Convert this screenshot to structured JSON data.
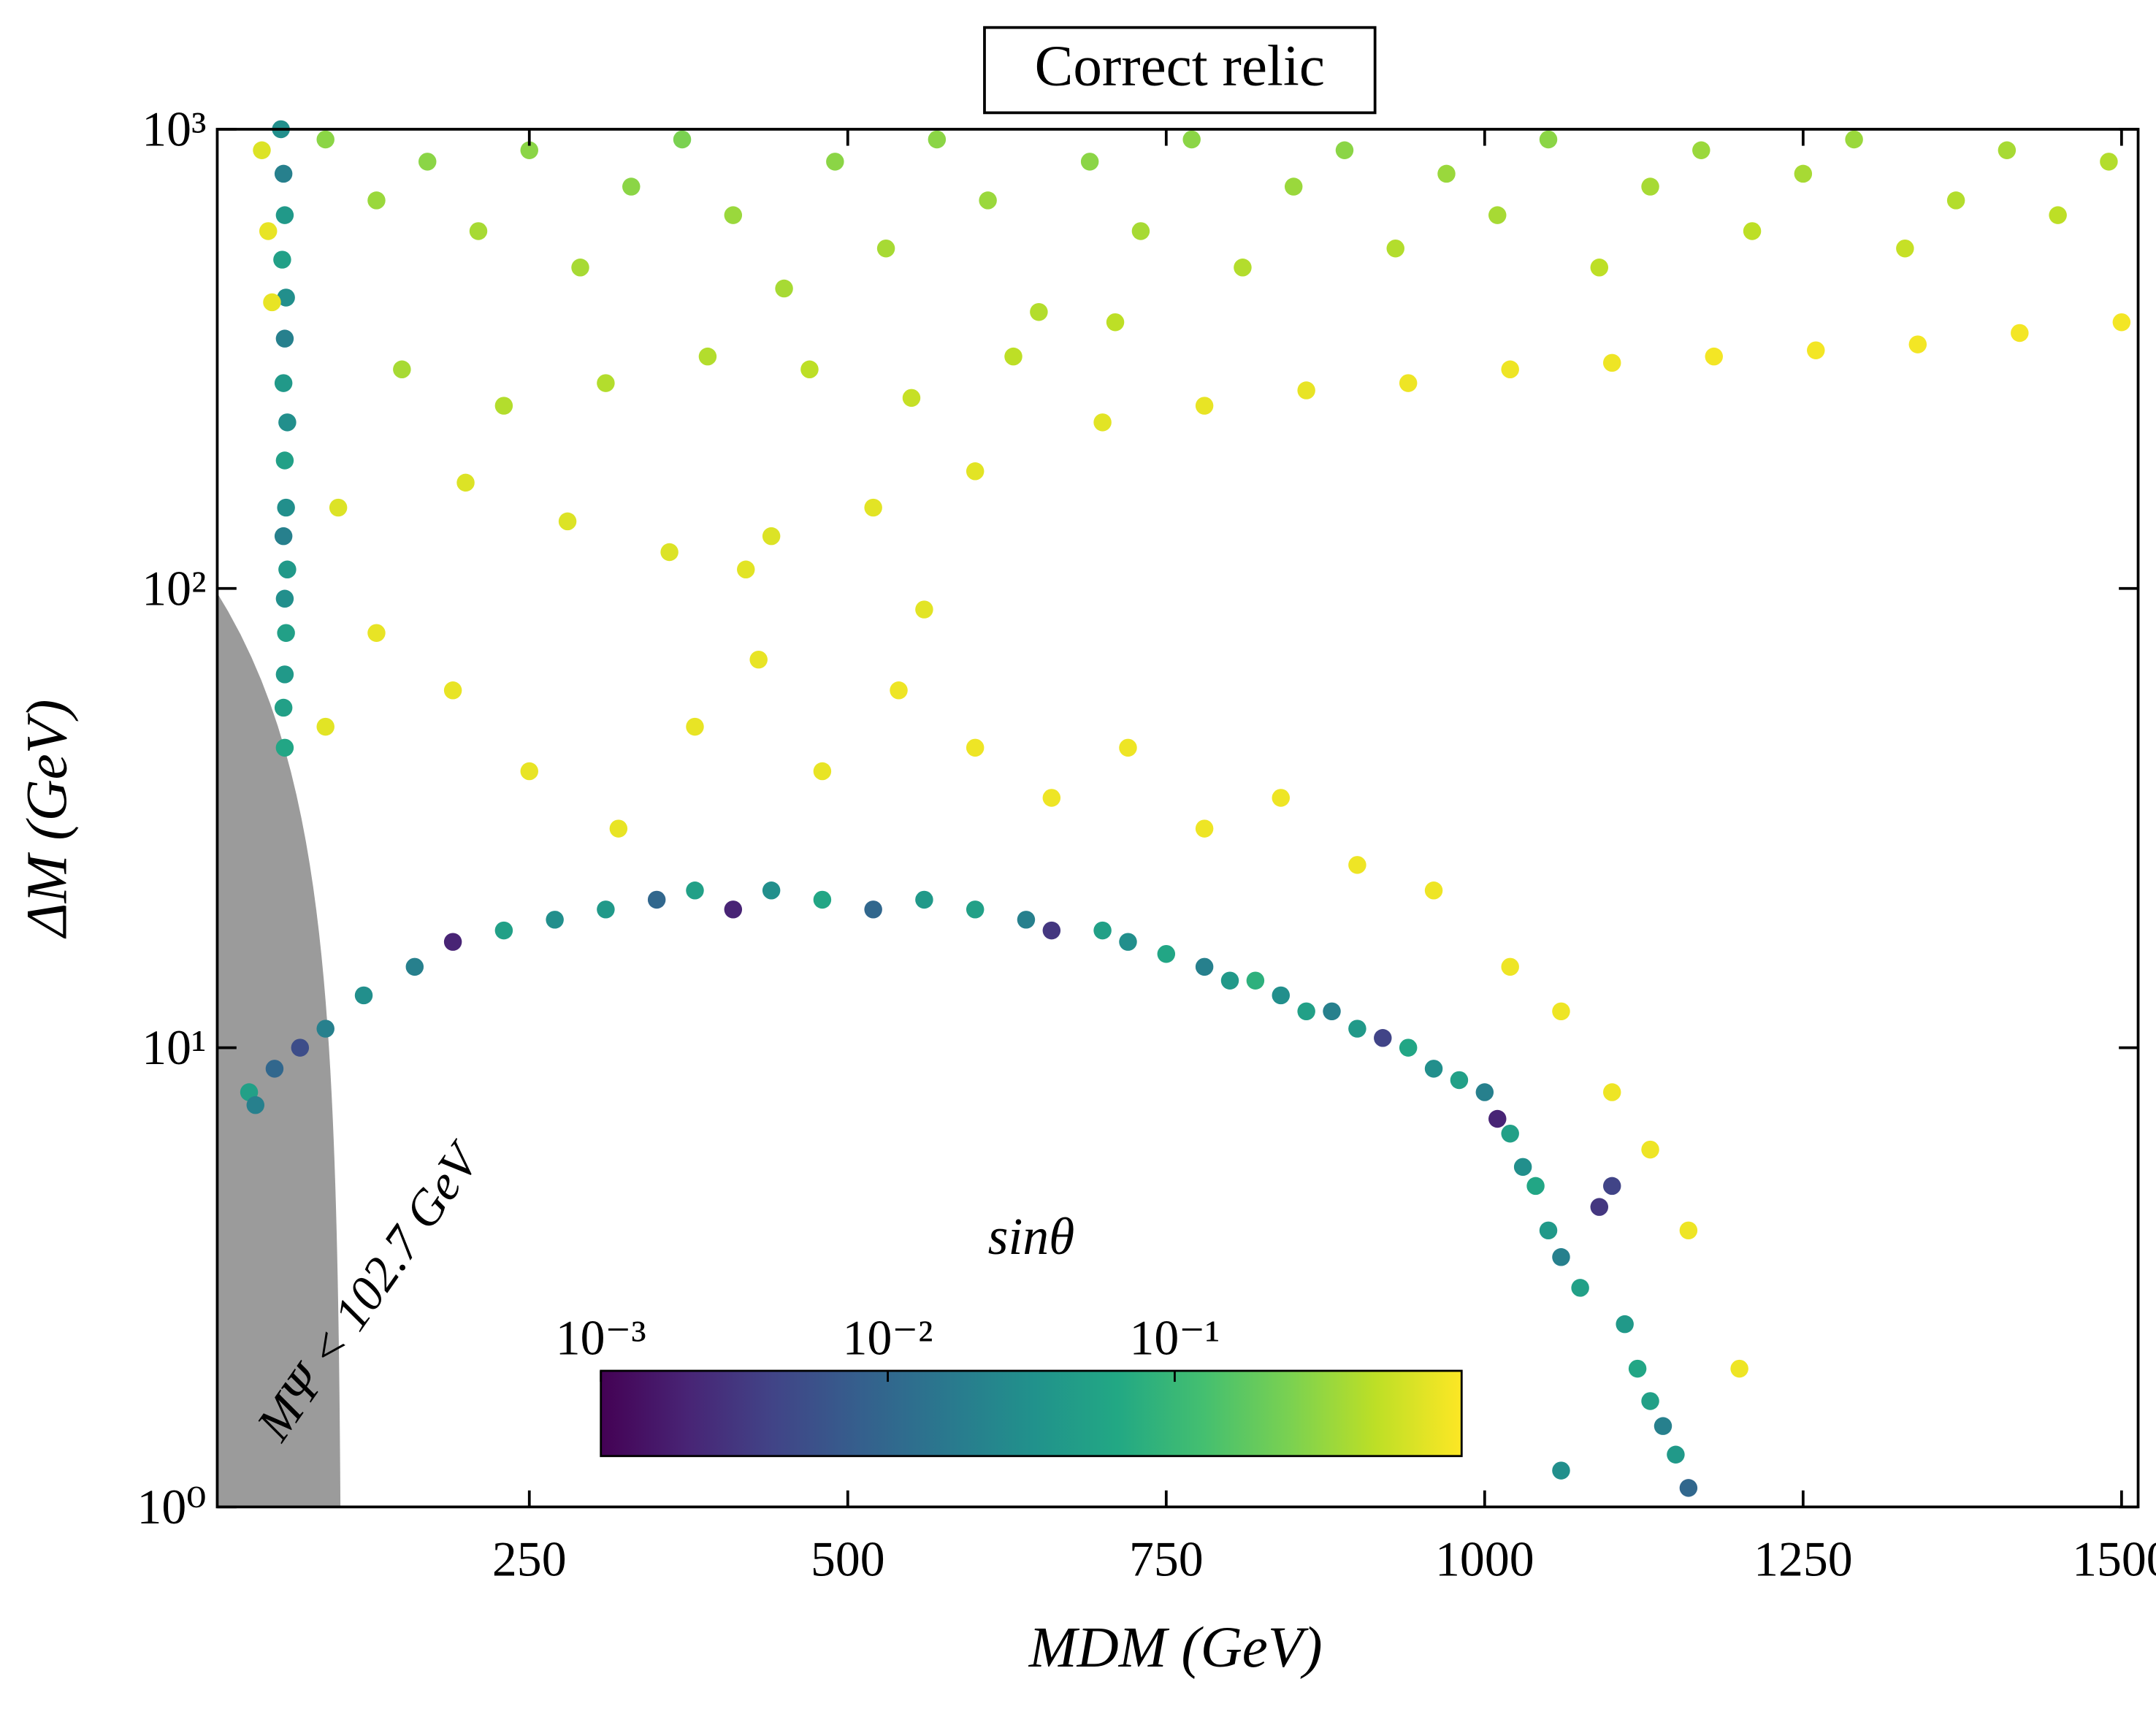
{
  "chart_data": {
    "type": "scatter",
    "title": "Correct relic",
    "x_label": "MDM (GeV)",
    "y_label": "ΔM (GeV)",
    "colorbar_label": "sinθ",
    "xlim": [
      5,
      1513
    ],
    "ylim": [
      1,
      1000
    ],
    "y_log": true,
    "xticks": [
      250,
      500,
      750,
      1000,
      1250,
      1500
    ],
    "yticks": [
      {
        "value": 1,
        "label": "10⁰"
      },
      {
        "value": 10,
        "label": "10¹"
      },
      {
        "value": 100,
        "label": "10²"
      },
      {
        "value": 1000,
        "label": "10³"
      }
    ],
    "clim": [
      0.001,
      1
    ],
    "c_log": true,
    "colormap": "viridis",
    "cticks": [
      {
        "value": 0.001,
        "label": "10⁻³"
      },
      {
        "value": 0.01,
        "label": "10⁻²"
      },
      {
        "value": 0.1,
        "label": "10⁻¹"
      }
    ],
    "shaded_region": {
      "label": "MΨ < 102.7 GeV",
      "limit": 102.7,
      "color": "#9b9b9b"
    },
    "x": [
      55,
      57,
      58,
      56,
      59,
      58,
      57,
      60,
      58,
      59,
      57,
      60,
      58,
      59,
      58,
      57,
      58,
      40,
      45,
      48,
      90,
      130,
      170,
      210,
      250,
      290,
      330,
      370,
      410,
      450,
      490,
      530,
      570,
      610,
      650,
      690,
      730,
      770,
      810,
      850,
      890,
      930,
      970,
      1010,
      1050,
      1090,
      1130,
      1170,
      1210,
      1250,
      1290,
      1330,
      1370,
      1410,
      1450,
      1490,
      150,
      230,
      310,
      390,
      470,
      550,
      630,
      710,
      700,
      780,
      860,
      940,
      1020,
      1100,
      1180,
      1260,
      1340,
      1420,
      1500,
      600,
      520,
      440,
      360,
      280,
      200,
      100,
      90,
      130,
      190,
      250,
      320,
      380,
      430,
      480,
      540,
      600,
      660,
      720,
      780,
      840,
      900,
      960,
      1020,
      1060,
      1100,
      1130,
      1160,
      1200,
      420,
      560,
      30,
      35,
      50,
      70,
      90,
      120,
      160,
      190,
      230,
      270,
      310,
      350,
      380,
      410,
      440,
      480,
      520,
      560,
      600,
      640,
      660,
      700,
      720,
      750,
      780,
      800,
      820,
      840,
      860,
      880,
      900,
      920,
      940,
      960,
      980,
      1000,
      1010,
      1020,
      1030,
      1040,
      1050,
      1060,
      1075,
      1090,
      1100,
      1110,
      1120,
      1130,
      1140,
      1150,
      1160,
      1060
    ],
    "y": [
      1000,
      800,
      650,
      520,
      430,
      350,
      280,
      230,
      190,
      150,
      130,
      110,
      95,
      80,
      65,
      55,
      45,
      900,
      600,
      420,
      950,
      700,
      850,
      600,
      900,
      500,
      750,
      950,
      650,
      450,
      850,
      550,
      950,
      700,
      400,
      850,
      600,
      950,
      500,
      750,
      900,
      550,
      800,
      650,
      950,
      500,
      750,
      900,
      600,
      800,
      950,
      550,
      700,
      900,
      650,
      850,
      300,
      250,
      280,
      320,
      300,
      260,
      320,
      380,
      230,
      250,
      270,
      280,
      300,
      310,
      320,
      330,
      340,
      360,
      380,
      180,
      150,
      130,
      120,
      140,
      170,
      150,
      50,
      80,
      60,
      40,
      30,
      50,
      70,
      40,
      60,
      45,
      35,
      45,
      30,
      35,
      25,
      22,
      15,
      12,
      8,
      6,
      4,
      2,
      110,
      90,
      8,
      7.5,
      9,
      10,
      11,
      13,
      15,
      17,
      18,
      19,
      20,
      21,
      22,
      20,
      22,
      21,
      20,
      21,
      20,
      19,
      18,
      18,
      17,
      16,
      15,
      14,
      14,
      13,
      12,
      12,
      11,
      10.5,
      10,
      9,
      8.5,
      8,
      7,
      6.5,
      5.5,
      5,
      4,
      3.5,
      3,
      4.5,
      5,
      2.5,
      2,
      1.7,
      1.5,
      1.3,
      1.1,
      1.2
    ],
    "c": [
      0.03,
      0.02,
      0.04,
      0.05,
      0.03,
      0.02,
      0.04,
      0.03,
      0.05,
      0.03,
      0.02,
      0.04,
      0.03,
      0.05,
      0.04,
      0.05,
      0.06,
      0.7,
      0.8,
      0.8,
      0.3,
      0.35,
      0.3,
      0.4,
      0.3,
      0.4,
      0.3,
      0.25,
      0.35,
      0.4,
      0.3,
      0.4,
      0.3,
      0.35,
      0.45,
      0.3,
      0.4,
      0.3,
      0.45,
      0.35,
      0.3,
      0.45,
      0.35,
      0.4,
      0.3,
      0.5,
      0.4,
      0.35,
      0.5,
      0.4,
      0.35,
      0.55,
      0.45,
      0.4,
      0.5,
      0.45,
      0.4,
      0.45,
      0.45,
      0.45,
      0.5,
      0.55,
      0.5,
      0.5,
      0.75,
      0.8,
      0.8,
      0.85,
      0.85,
      0.85,
      0.9,
      0.9,
      0.9,
      0.9,
      0.9,
      0.75,
      0.75,
      0.7,
      0.7,
      0.7,
      0.7,
      0.7,
      0.75,
      0.8,
      0.8,
      0.8,
      0.8,
      0.8,
      0.8,
      0.8,
      0.85,
      0.85,
      0.85,
      0.85,
      0.85,
      0.85,
      0.85,
      0.85,
      0.85,
      0.85,
      0.85,
      0.85,
      0.85,
      0.85,
      0.75,
      0.75,
      0.05,
      0.02,
      0.01,
      0.005,
      0.02,
      0.03,
      0.02,
      0.002,
      0.05,
      0.03,
      0.04,
      0.01,
      0.05,
      0.002,
      0.03,
      0.06,
      0.01,
      0.04,
      0.05,
      0.02,
      0.003,
      0.05,
      0.03,
      0.06,
      0.02,
      0.04,
      0.08,
      0.03,
      0.05,
      0.02,
      0.04,
      0.004,
      0.06,
      0.03,
      0.05,
      0.02,
      0.002,
      0.05,
      0.03,
      0.06,
      0.04,
      0.02,
      0.05,
      0.003,
      0.004,
      0.04,
      0.06,
      0.05,
      0.02,
      0.04,
      0.01,
      0.03
    ]
  }
}
